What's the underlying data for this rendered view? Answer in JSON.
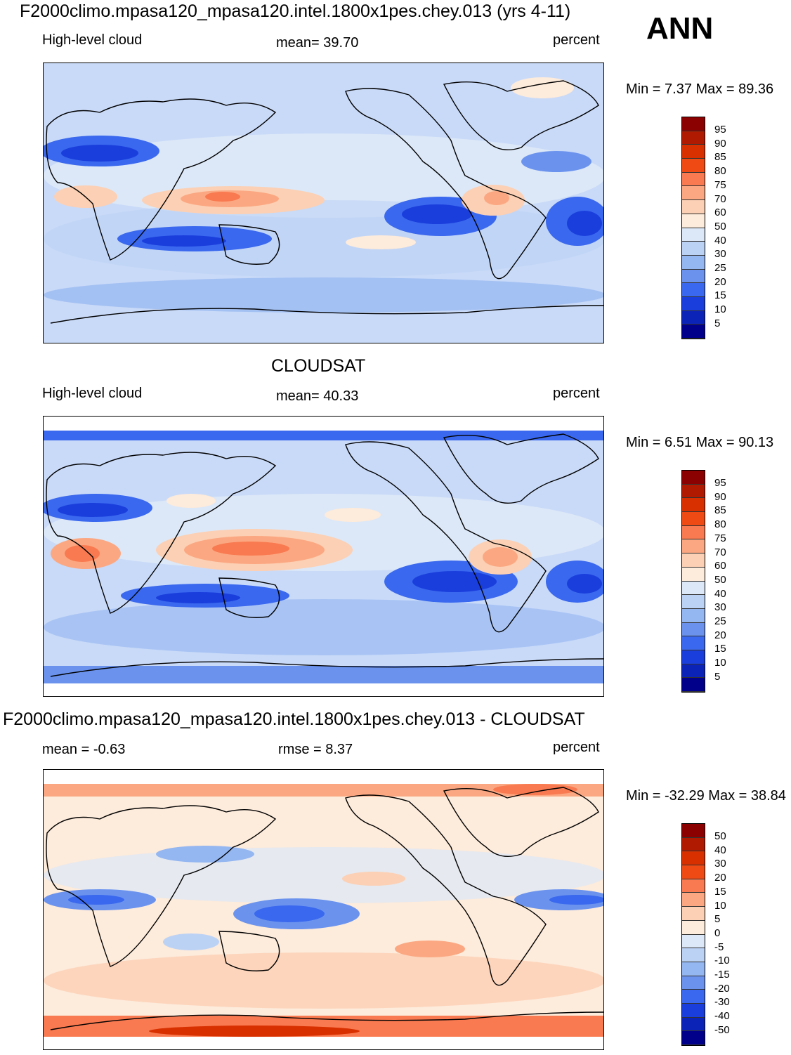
{
  "season": "ANN",
  "panels": [
    {
      "title": "F2000climo.mpasa120_mpasa120.intel.1800x1pes.chey.013 (yrs 4-11)",
      "left_label": "High-level cloud",
      "center_label": "mean=  39.70",
      "units": "percent",
      "minmax": "Min =   7.37 Max =  89.36",
      "colorbar_ticks": [
        "95",
        "90",
        "85",
        "80",
        "75",
        "70",
        "60",
        "50",
        "40",
        "30",
        "25",
        "20",
        "15",
        "10",
        "5"
      ]
    },
    {
      "title": "CLOUDSAT",
      "left_label": "High-level cloud",
      "center_label": "mean=  40.33",
      "units": "percent",
      "minmax": "Min =   6.51 Max =  90.13",
      "colorbar_ticks": [
        "95",
        "90",
        "85",
        "80",
        "75",
        "70",
        "60",
        "50",
        "40",
        "30",
        "25",
        "20",
        "15",
        "10",
        "5"
      ]
    },
    {
      "title": "F2000climo.mpasa120_mpasa120.intel.1800x1pes.chey.013 - CLOUDSAT",
      "left_label": "mean =  -0.63",
      "center_label": "rmse =    8.37",
      "units": "percent",
      "minmax": "Min = -32.29 Max =  38.84",
      "colorbar_ticks": [
        "50",
        "40",
        "30",
        "20",
        "15",
        "10",
        "5",
        "0",
        "-5",
        "-10",
        "-15",
        "-20",
        "-30",
        "-40",
        "-50"
      ]
    }
  ],
  "colorbar_colors": [
    "#8b0000",
    "#b01a00",
    "#d93000",
    "#f04a14",
    "#f97a50",
    "#fba882",
    "#fcd0b4",
    "#fdebdb",
    "#dce8f8",
    "#bcd2f5",
    "#94b6f1",
    "#6b93ee",
    "#3a68ee",
    "#1a3edc",
    "#0c23b8",
    "#00008b"
  ]
}
